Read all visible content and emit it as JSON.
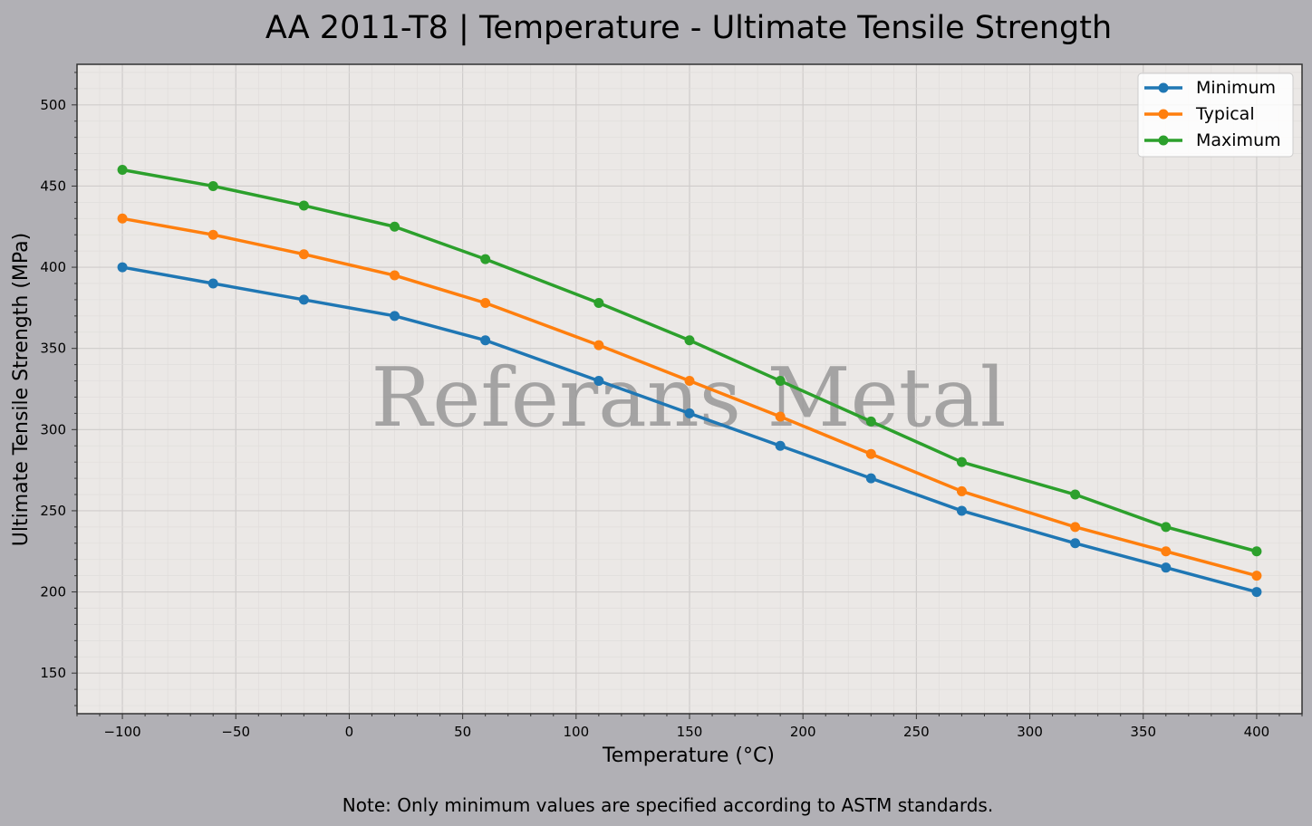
{
  "chart_data": {
    "type": "line",
    "title": "AA 2011-T8 | Temperature - Ultimate Tensile Strength",
    "xlabel": "Temperature (°C)",
    "ylabel": "Ultimate Tensile Strength (MPa)",
    "xlim": [
      -120,
      420
    ],
    "ylim": [
      125,
      525
    ],
    "xticks": [
      -100,
      -50,
      0,
      50,
      100,
      150,
      200,
      250,
      300,
      350,
      400
    ],
    "xtick_labels": [
      "−100",
      "−50",
      "0",
      "50",
      "100",
      "150",
      "200",
      "250",
      "300",
      "350",
      "400"
    ],
    "yticks": [
      150,
      200,
      250,
      300,
      350,
      400,
      450,
      500
    ],
    "grid": true,
    "legend_position": "top-right",
    "x": [
      -100,
      -60,
      -20,
      20,
      60,
      110,
      150,
      190,
      230,
      270,
      320,
      360,
      400
    ],
    "series": [
      {
        "name": "Minimum",
        "color": "#1f77b4",
        "values": [
          400,
          390,
          380,
          370,
          355,
          330,
          310,
          290,
          270,
          250,
          230,
          215,
          200
        ]
      },
      {
        "name": "Typical",
        "color": "#ff7f0e",
        "values": [
          430,
          420,
          408,
          395,
          378,
          352,
          330,
          308,
          285,
          262,
          240,
          225,
          210
        ]
      },
      {
        "name": "Maximum",
        "color": "#2ca02c",
        "values": [
          460,
          450,
          438,
          425,
          405,
          378,
          355,
          330,
          305,
          280,
          260,
          240,
          225
        ]
      }
    ],
    "watermark": "Referans Metal",
    "note": "Note: Only minimum values are specified according to ASTM standards."
  }
}
